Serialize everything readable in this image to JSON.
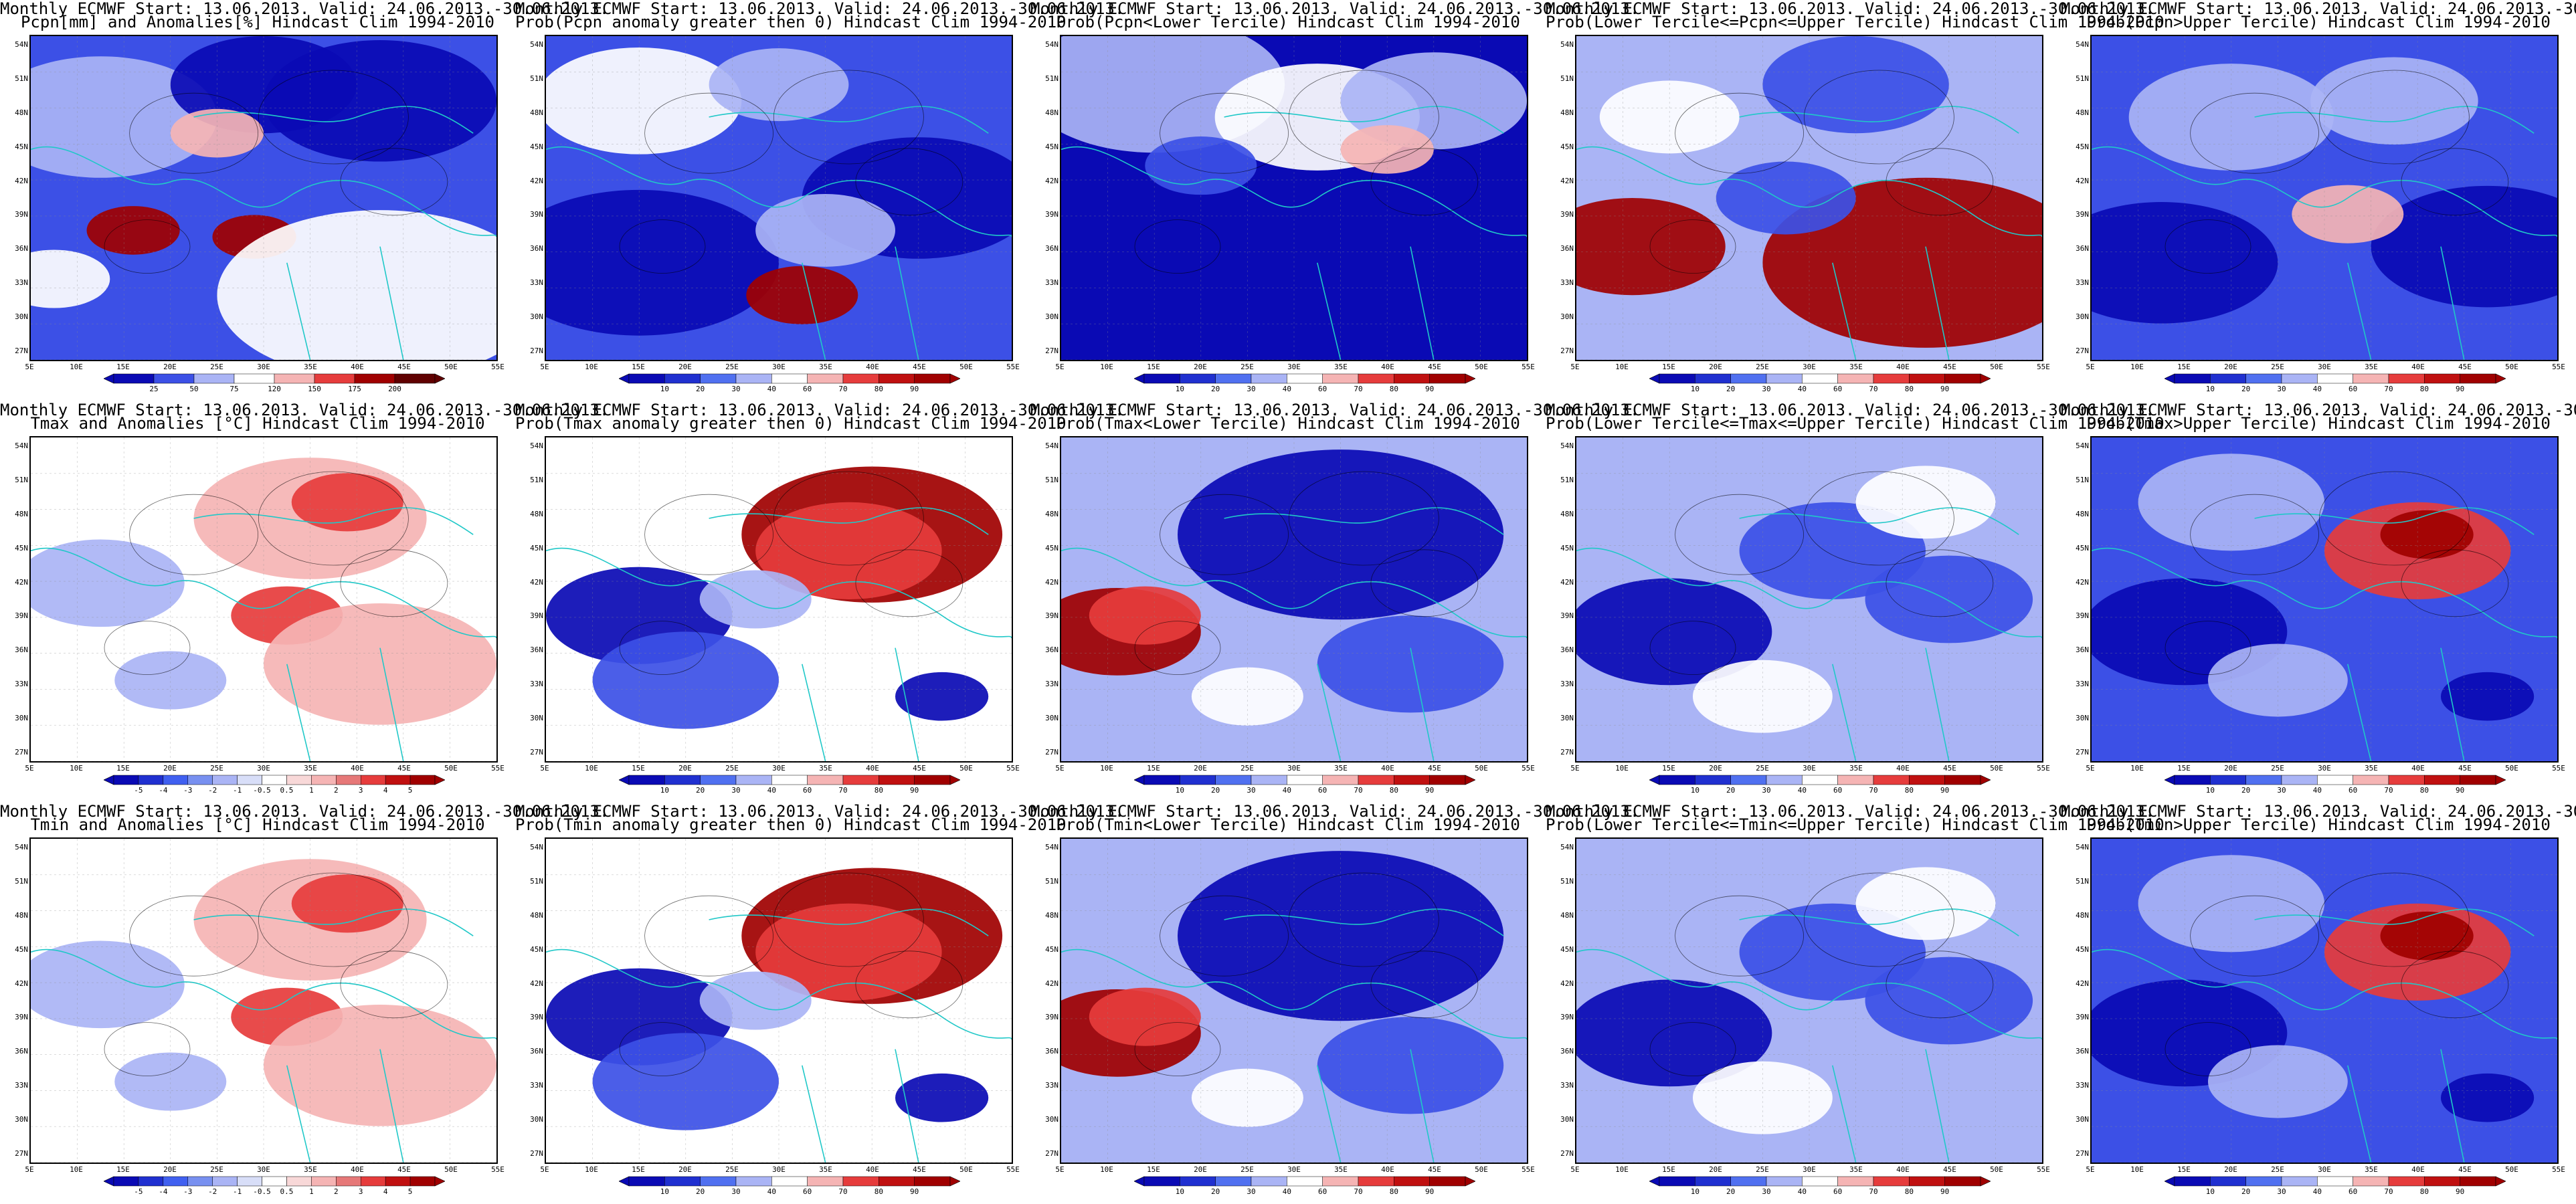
{
  "common": {
    "title_line1": "Monthly ECMWF Start: 13.06.2013. Valid: 24.06.2013.-30.06.2013.",
    "lat_ticks": [
      "54N",
      "51N",
      "48N",
      "45N",
      "42N",
      "39N",
      "36N",
      "33N",
      "30N",
      "27N"
    ],
    "lon_ticks": [
      "5E",
      "10E",
      "15E",
      "20E",
      "25E",
      "30E",
      "35E",
      "40E",
      "45E",
      "50E",
      "55E"
    ]
  },
  "colorbars": {
    "pcpn": [
      "25",
      "50",
      "75",
      "120",
      "150",
      "175",
      "200"
    ],
    "prob": [
      "10",
      "20",
      "30",
      "40",
      "60",
      "70",
      "80",
      "90"
    ],
    "temp": [
      "-5",
      "-4",
      "-3",
      "-2",
      "-1",
      "-0.5",
      "0.5",
      "1",
      "2",
      "3",
      "4",
      "5"
    ]
  },
  "colors": {
    "deep_blue": "#0a0ab4",
    "mid_blue": "#3c50e6",
    "light_blue": "#aab4f5",
    "white": "#ffffff",
    "light_red": "#f5b4b4",
    "mid_red": "#e63c3c",
    "deep_red": "#a00000",
    "coast": "#20c8c8",
    "contour": "#000000"
  },
  "panels": [
    {
      "title2": "Pcpn[mm] and Anomalies[%] Hindcast Clim 1994-2010",
      "scheme": "pcpn",
      "cbar": "pcpn"
    },
    {
      "title2": "Prob(Pcpn anomaly greater then 0) Hindcast Clim 1994-2010",
      "scheme": "p_pgt",
      "cbar": "prob"
    },
    {
      "title2": "Prob(Pcpn<Lower Tercile) Hindcast Clim 1994-2010",
      "scheme": "p_plow",
      "cbar": "prob"
    },
    {
      "title2": "Prob(Lower Tercile<=Pcpn<=Upper Tercile) Hindcast Clim 1994-2010",
      "scheme": "p_pmid",
      "cbar": "prob"
    },
    {
      "title2": "Prob(Pcpn>Upper Tercile) Hindcast Clim 1994-2010",
      "scheme": "p_pup",
      "cbar": "prob"
    },
    {
      "title2": "Tmax and Anomalies [°C] Hindcast Clim 1994-2010",
      "scheme": "temp",
      "cbar": "temp"
    },
    {
      "title2": "Prob(Tmax anomaly greater then 0) Hindcast Clim 1994-2010",
      "scheme": "p_warm",
      "cbar": "prob"
    },
    {
      "title2": "Prob(Tmax<Lower Tercile) Hindcast Clim 1994-2010",
      "scheme": "p_cold",
      "cbar": "prob"
    },
    {
      "title2": "Prob(Lower Tercile<=Tmax<=Upper Tercile) Hindcast Clim 1994-2010",
      "scheme": "p_mid",
      "cbar": "prob"
    },
    {
      "title2": "Prob(Tmax>Upper Tercile) Hindcast Clim 1994-2010",
      "scheme": "p_up",
      "cbar": "prob"
    },
    {
      "title2": "Tmin and Anomalies [°C] Hindcast Clim 1994-2010",
      "scheme": "temp",
      "cbar": "temp"
    },
    {
      "title2": "Prob(Tmin anomaly greater then 0) Hindcast Clim 1994-2010",
      "scheme": "p_warm",
      "cbar": "prob"
    },
    {
      "title2": "Prob(Tmin<Lower Tercile) Hindcast Clim 1994-2010",
      "scheme": "p_cold",
      "cbar": "prob"
    },
    {
      "title2": "Prob(Lower Tercile<=Tmin<=Upper Tercile) Hindcast Clim 1994-2010",
      "scheme": "p_mid",
      "cbar": "prob"
    },
    {
      "title2": "Prob(Tmin>Upper Tercile) Hindcast Clim 1994-2010",
      "scheme": "p_up",
      "cbar": "prob"
    }
  ]
}
